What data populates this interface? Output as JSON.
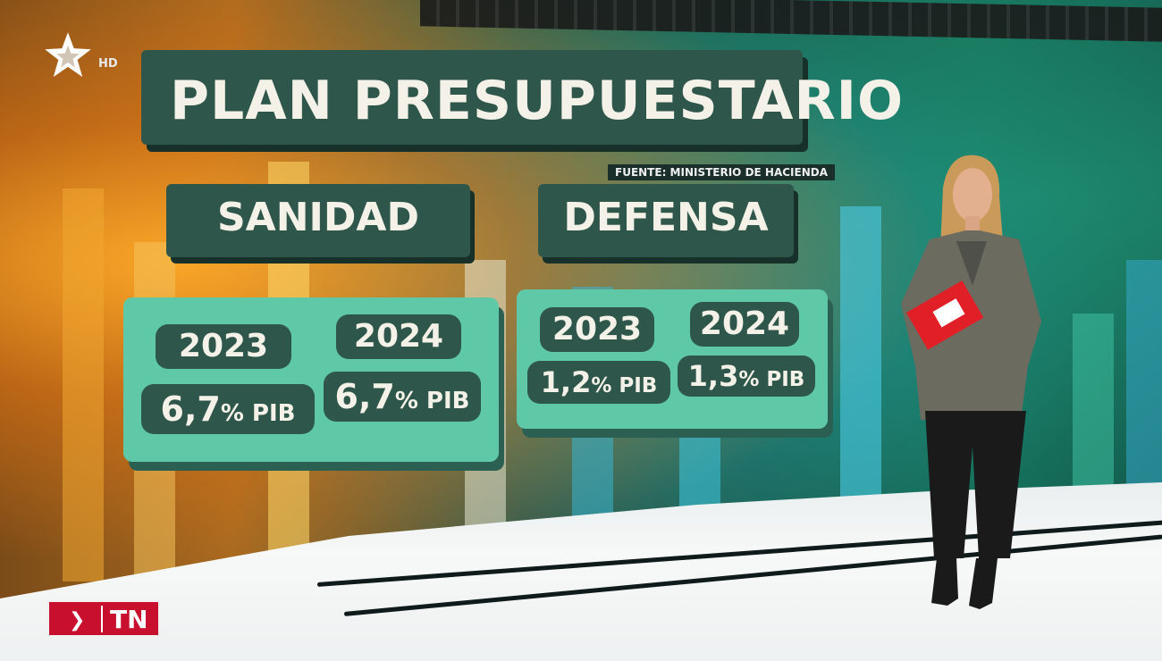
{
  "broadcast": {
    "channel_badge": "HD",
    "news_logo": "TN"
  },
  "graphic": {
    "title": "PLAN PRESUPUESTARIO",
    "source": "FUENTE: MINISTERIO DE HACIENDA",
    "categories": [
      {
        "label": "SANIDAD",
        "entries": [
          {
            "year": "2023",
            "value": "6,7",
            "unit": "% PIB"
          },
          {
            "year": "2024",
            "value": "6,7",
            "unit": "% PIB"
          }
        ]
      },
      {
        "label": "DEFENSA",
        "entries": [
          {
            "year": "2023",
            "value": "1,2",
            "unit": "% PIB"
          },
          {
            "year": "2024",
            "value": "1,3",
            "unit": "% PIB"
          }
        ]
      }
    ]
  },
  "icons": {
    "channel_logo": "star-icon",
    "news_chevron": "chevron-right-icon"
  },
  "colors": {
    "panel_dark_green": "#2f564b",
    "panel_mint": "#5fc9a7",
    "text_cream": "#f4f2e8",
    "tn_red": "#c8102e"
  }
}
